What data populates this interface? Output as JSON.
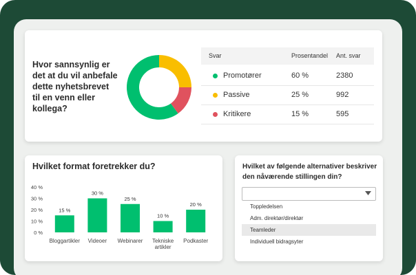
{
  "nps_card": {
    "question": "Hvor sannsynlig er det at du vil anbefale dette nyhetsbrevet til en venn eller kollega?",
    "chart": {
      "type": "pie",
      "categories": [
        "Promotører",
        "Passive",
        "Kritikere"
      ],
      "colors": [
        "#00bf6f",
        "#f9be00",
        "#e0525e"
      ],
      "values": [
        60,
        25,
        15
      ],
      "value_labels": [
        "60 %",
        "25 %",
        "15 %"
      ],
      "counts": [
        2380,
        992,
        595
      ]
    },
    "table_headers": [
      "Svar",
      "Prosentandel",
      "Ant. svar"
    ]
  },
  "format_card": {
    "chart": {
      "type": "bar",
      "title": "Hvilket format foretrekker du?",
      "categories": [
        "Bloggartikler",
        "Videoer",
        "Webinarer",
        "Tekniske artikler",
        "Podkaster"
      ],
      "values": [
        15,
        30,
        25,
        10,
        20
      ],
      "value_labels": [
        "15 %",
        "30 %",
        "25 %",
        "10 %",
        "20 %"
      ],
      "color": "#00bf6f",
      "ylim": [
        0,
        40
      ],
      "yticks": [
        {
          "value": 0,
          "label": "0 %"
        },
        {
          "value": 10,
          "label": "10 %"
        },
        {
          "value": 20,
          "label": "20 %"
        },
        {
          "value": 30,
          "label": "30 %"
        },
        {
          "value": 40,
          "label": "40 %"
        }
      ]
    }
  },
  "role_card": {
    "question": "Hvilket av følgende alternativer beskriver den nåværende stillingen din?",
    "options": [
      "Toppledelsen",
      "Adm. direktør/direktør",
      "Teamleder",
      "Individuell bidragsyter"
    ],
    "selected": 2
  }
}
